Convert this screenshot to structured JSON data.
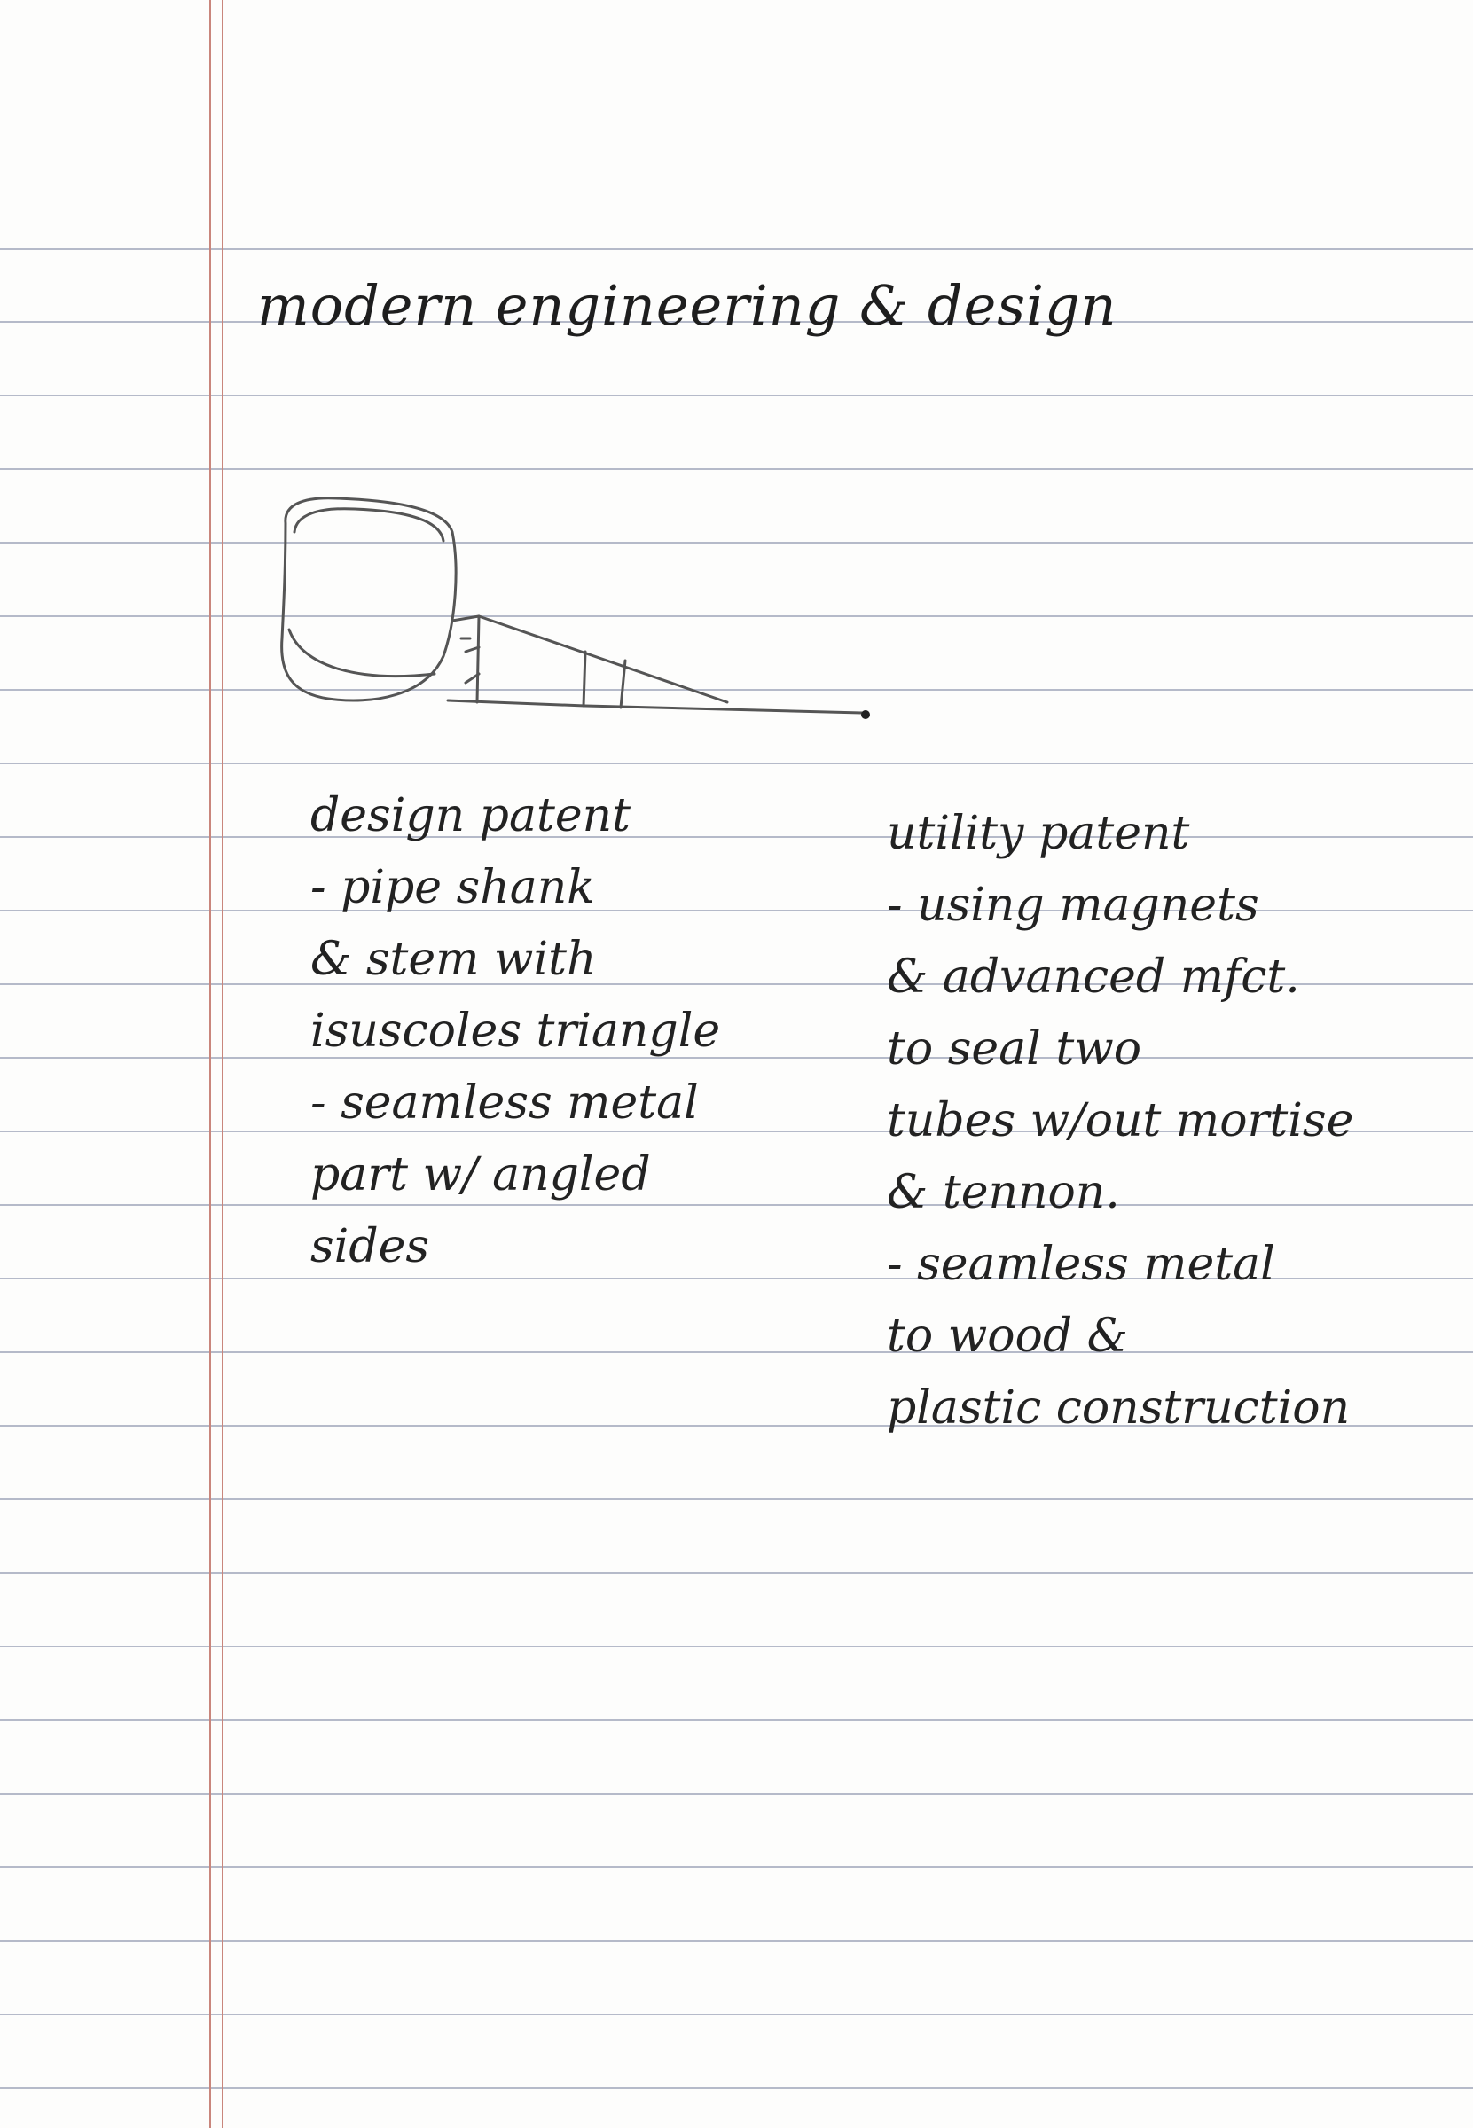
{
  "page": {
    "title": "modern engineering & design",
    "ruled_line_color": "#a8aec0",
    "margin_line_color": "#c9867c",
    "ink_color": "#1e1e1e"
  },
  "sketch": {
    "icon": "pipe-sketch-icon"
  },
  "notes": {
    "left": {
      "heading": "design patent",
      "lines": [
        "- pipe shank",
        "& stem with",
        "isuscoles triangle",
        "- seamless metal",
        "part w/ angled",
        "sides"
      ]
    },
    "right": {
      "heading": "utility patent",
      "lines": [
        "- using magnets",
        "& advanced mfct.",
        "to seal two",
        "tubes w/out mortise",
        "& tennon.",
        "- seamless metal",
        "to wood &",
        "plastic construction"
      ]
    }
  }
}
